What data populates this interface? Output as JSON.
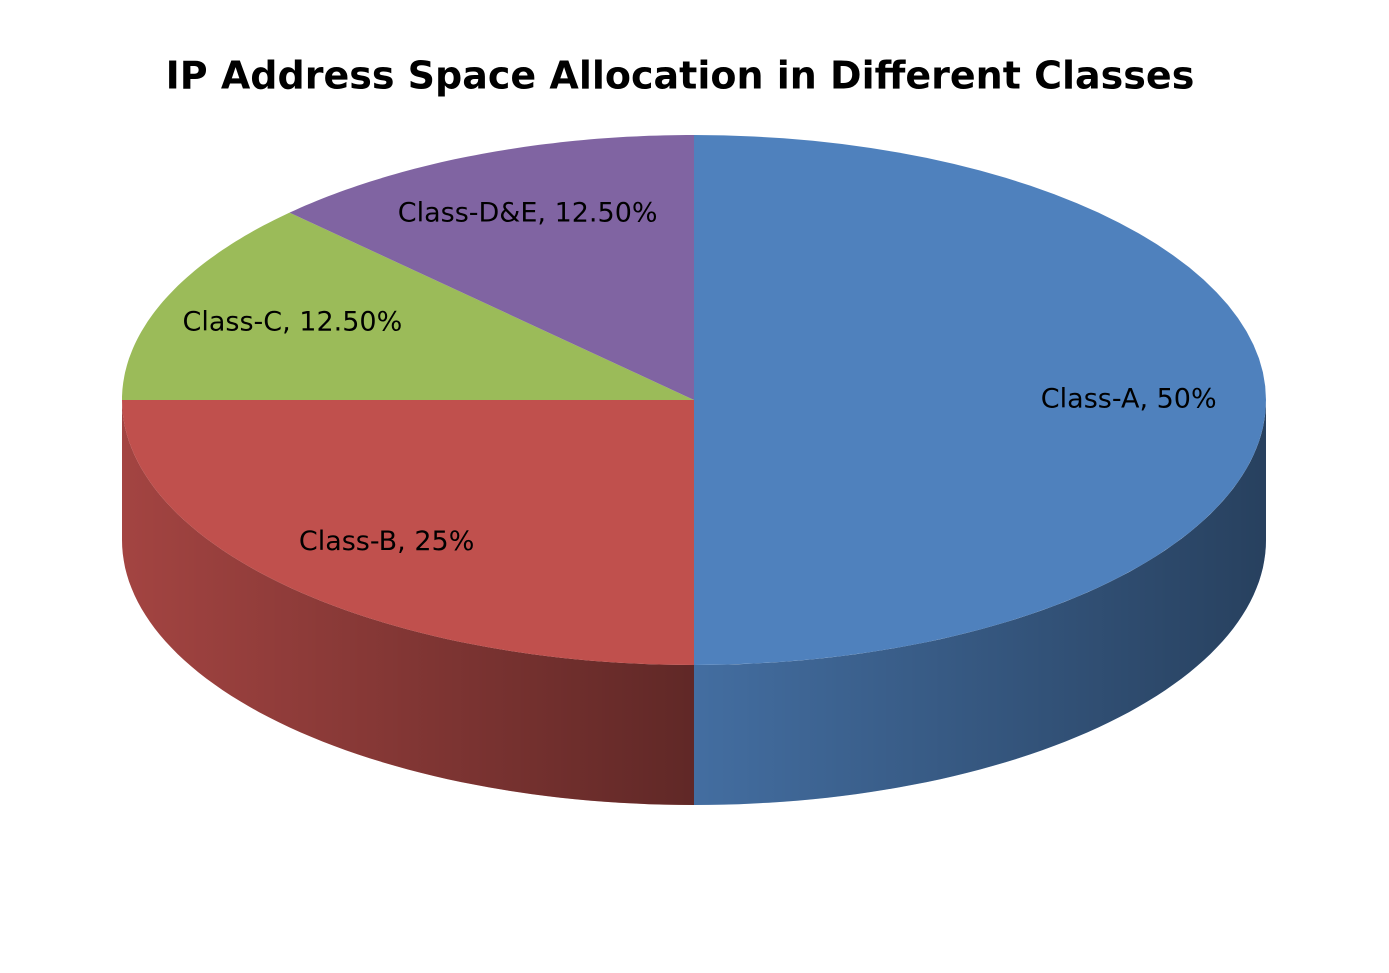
{
  "chart_data": {
    "type": "pie",
    "title": "IP Address Space Allocation in Different Classes",
    "values": [
      50,
      25,
      12.5,
      12.5
    ],
    "value_labels": [
      "Class-A, 50%",
      "Class-B, 25%",
      "Class-C, 12.50%",
      "Class-D&E, 12.50%"
    ],
    "colors": [
      "#4f81bd",
      "#c0504d",
      "#9bbb59",
      "#8064a2"
    ]
  }
}
